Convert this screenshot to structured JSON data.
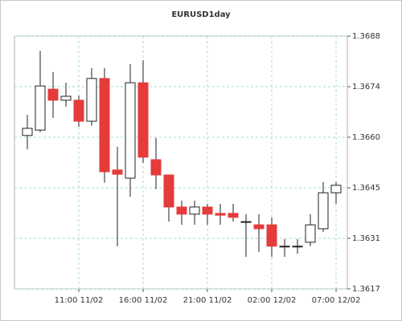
{
  "chart_data": {
    "type": "candlestick",
    "title": "EURUSD1day",
    "categories": [
      null,
      null,
      null,
      null,
      "11:00 11/02",
      null,
      null,
      null,
      null,
      "16:00 11/02",
      null,
      null,
      null,
      null,
      "21:00 11/02",
      null,
      null,
      null,
      null,
      "02:00 12/02",
      null,
      null,
      null,
      null,
      "07:00 12/02"
    ],
    "open": [
      1.36601,
      1.36616,
      1.36731,
      1.367,
      1.367,
      1.36641,
      1.36761,
      1.36504,
      1.36481,
      1.36749,
      1.36533,
      1.3649,
      1.364,
      1.3638,
      1.364,
      1.36382,
      1.36382,
      1.36359,
      1.3635,
      1.3635,
      1.3629,
      1.3629,
      1.36301,
      1.36339,
      1.3644
    ],
    "high": [
      1.36659,
      1.36839,
      1.36779,
      1.36749,
      1.36713,
      1.3679,
      1.3679,
      1.36569,
      1.36801,
      1.36812,
      1.36594,
      1.3649,
      1.36418,
      1.36418,
      1.36409,
      1.36409,
      1.36409,
      1.3638,
      1.3638,
      1.36371,
      1.3631,
      1.3631,
      1.3638,
      1.3647,
      1.3647
    ],
    "low": [
      1.36562,
      1.3661,
      1.3665,
      1.36682,
      1.36625,
      1.36628,
      1.36468,
      1.3629,
      1.36429,
      1.36524,
      1.3645,
      1.36359,
      1.3635,
      1.3635,
      1.3635,
      1.3635,
      1.36359,
      1.3626,
      1.36274,
      1.3626,
      1.3626,
      1.36269,
      1.3629,
      1.3633,
      1.36409
    ],
    "close": [
      1.36621,
      1.3674,
      1.367,
      1.36711,
      1.36641,
      1.36761,
      1.36499,
      1.36492,
      1.36749,
      1.3654,
      1.3649,
      1.364,
      1.3638,
      1.364,
      1.3638,
      1.36377,
      1.36371,
      1.36359,
      1.36339,
      1.3629,
      1.3629,
      1.3629,
      1.3635,
      1.3644,
      1.36461
    ],
    "up_color": "#ffffff",
    "down_color": "#e53b3b",
    "ylim": [
      1.3617,
      1.3688
    ],
    "yticks": [
      {
        "value": 1.3617,
        "label": "1.3617"
      },
      {
        "value": 1.36312,
        "label": "1.3631"
      },
      {
        "value": 1.36454,
        "label": "1.3645"
      },
      {
        "value": 1.36596,
        "label": "1.3660"
      },
      {
        "value": 1.36738,
        "label": "1.3674"
      },
      {
        "value": 1.3688,
        "label": "1.3688"
      }
    ],
    "grid": true
  }
}
